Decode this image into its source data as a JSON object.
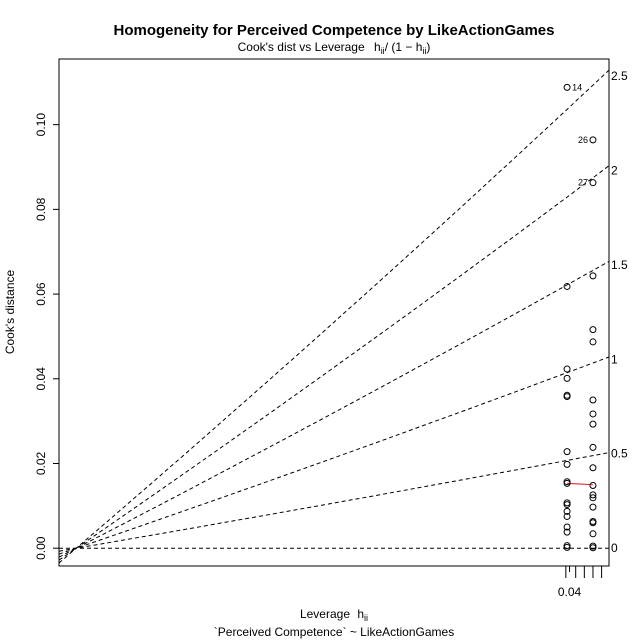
{
  "chart_data": {
    "type": "scatter",
    "title": "Homogeneity for Perceived Competence by LikeActionGames",
    "subtitle_main": "Cook's dist vs Leverage",
    "subtitle_expr": "h",
    "subtitle_expr_sub": "ii",
    "subtitle_expr_div": "/ (1 − h",
    "subtitle_expr_sub2": "ii",
    "subtitle_expr_end": ")",
    "xlabel": "Leverage",
    "xlabel_expr": "h",
    "xlabel_sub": "ii",
    "model_label": "`Perceived Competence` ~ LikeActionGames",
    "ylabel": "Cook's distance",
    "xlim": [
      -0.0014,
      0.0432
    ],
    "ylim": [
      -0.0042,
      0.1155
    ],
    "x_ticks": [
      0.04
    ],
    "x_tick_labels": [
      "0.04"
    ],
    "y_ticks": [
      0.0,
      0.02,
      0.04,
      0.06,
      0.08,
      0.1
    ],
    "y_tick_labels": [
      "0.00",
      "0.02",
      "0.04",
      "0.06",
      "0.08",
      "0.10"
    ],
    "contour_slopes": [
      0,
      0.5,
      1,
      1.5,
      2,
      2.5
    ],
    "contour_labels": [
      "0",
      "0.5",
      "1",
      "1.5",
      "2",
      "2.5"
    ],
    "rug_x": [
      0.0397,
      0.0405,
      0.0412,
      0.0419,
      0.0426
    ],
    "smoother": {
      "x": [
        0.0398,
        0.0419
      ],
      "y": [
        0.0153,
        0.015
      ]
    },
    "points": [
      {
        "x": 0.0398,
        "y": 0.1088,
        "label": "14"
      },
      {
        "x": 0.0419,
        "y": 0.0964,
        "label": "26"
      },
      {
        "x": 0.0419,
        "y": 0.0863,
        "label": "27"
      },
      {
        "x": 0.0419,
        "y": 0.0643
      },
      {
        "x": 0.0398,
        "y": 0.0618
      },
      {
        "x": 0.0419,
        "y": 0.0516
      },
      {
        "x": 0.0419,
        "y": 0.0487
      },
      {
        "x": 0.0398,
        "y": 0.0423
      },
      {
        "x": 0.0398,
        "y": 0.0401
      },
      {
        "x": 0.0398,
        "y": 0.0361
      },
      {
        "x": 0.0398,
        "y": 0.0358
      },
      {
        "x": 0.0419,
        "y": 0.035
      },
      {
        "x": 0.0419,
        "y": 0.0317
      },
      {
        "x": 0.0419,
        "y": 0.0293
      },
      {
        "x": 0.0419,
        "y": 0.0238
      },
      {
        "x": 0.0398,
        "y": 0.0228
      },
      {
        "x": 0.0398,
        "y": 0.0198
      },
      {
        "x": 0.0419,
        "y": 0.019
      },
      {
        "x": 0.0398,
        "y": 0.0157
      },
      {
        "x": 0.0398,
        "y": 0.0153
      },
      {
        "x": 0.0419,
        "y": 0.0148
      },
      {
        "x": 0.0419,
        "y": 0.0126
      },
      {
        "x": 0.0419,
        "y": 0.0119
      },
      {
        "x": 0.0398,
        "y": 0.0107
      },
      {
        "x": 0.0398,
        "y": 0.0103
      },
      {
        "x": 0.0419,
        "y": 0.0097
      },
      {
        "x": 0.0398,
        "y": 0.0087
      },
      {
        "x": 0.0398,
        "y": 0.0075
      },
      {
        "x": 0.0419,
        "y": 0.0063
      },
      {
        "x": 0.0419,
        "y": 0.006
      },
      {
        "x": 0.0398,
        "y": 0.005
      },
      {
        "x": 0.0398,
        "y": 0.0038
      },
      {
        "x": 0.0419,
        "y": 0.0034
      },
      {
        "x": 0.0398,
        "y": 0.0006
      },
      {
        "x": 0.0398,
        "y": 0.0002
      },
      {
        "x": 0.0419,
        "y": 0.0005
      },
      {
        "x": 0.0419,
        "y": 0.0001
      }
    ],
    "colors": {
      "points": "#000000",
      "contours": "#000000",
      "smoother": "#e8324a"
    }
  }
}
